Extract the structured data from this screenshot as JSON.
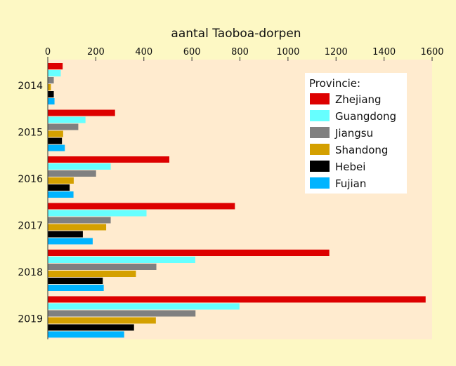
{
  "chart_data": {
    "type": "bar",
    "orientation": "horizontal",
    "title": "aantal Taoboa-dorpen",
    "xlim": [
      0,
      1600
    ],
    "x_ticks": [
      0,
      200,
      400,
      600,
      800,
      1000,
      1200,
      1400,
      1600
    ],
    "categories": [
      "2014",
      "2015",
      "2016",
      "2017",
      "2018",
      "2019"
    ],
    "legend": {
      "title": "Provincie:",
      "placement": "top-right"
    },
    "grid": false,
    "series": [
      {
        "name": "Zhejiang",
        "color": "#dd0000",
        "values": [
          62,
          280,
          506,
          779,
          1172,
          1573
        ]
      },
      {
        "name": "Guangdong",
        "color": "#66ffff",
        "values": [
          54,
          157,
          262,
          411,
          614,
          798
        ]
      },
      {
        "name": "Jiangsu",
        "color": "#808080",
        "values": [
          25,
          127,
          201,
          262,
          452,
          615
        ]
      },
      {
        "name": "Shandong",
        "color": "#d4a000",
        "values": [
          13,
          64,
          108,
          243,
          367,
          450
        ]
      },
      {
        "name": "Hebei",
        "color": "#000000",
        "values": [
          25,
          59,
          91,
          146,
          229,
          359
        ]
      },
      {
        "name": "Fujian",
        "color": "#00b4ff",
        "values": [
          28,
          71,
          107,
          187,
          233,
          318
        ]
      }
    ]
  }
}
